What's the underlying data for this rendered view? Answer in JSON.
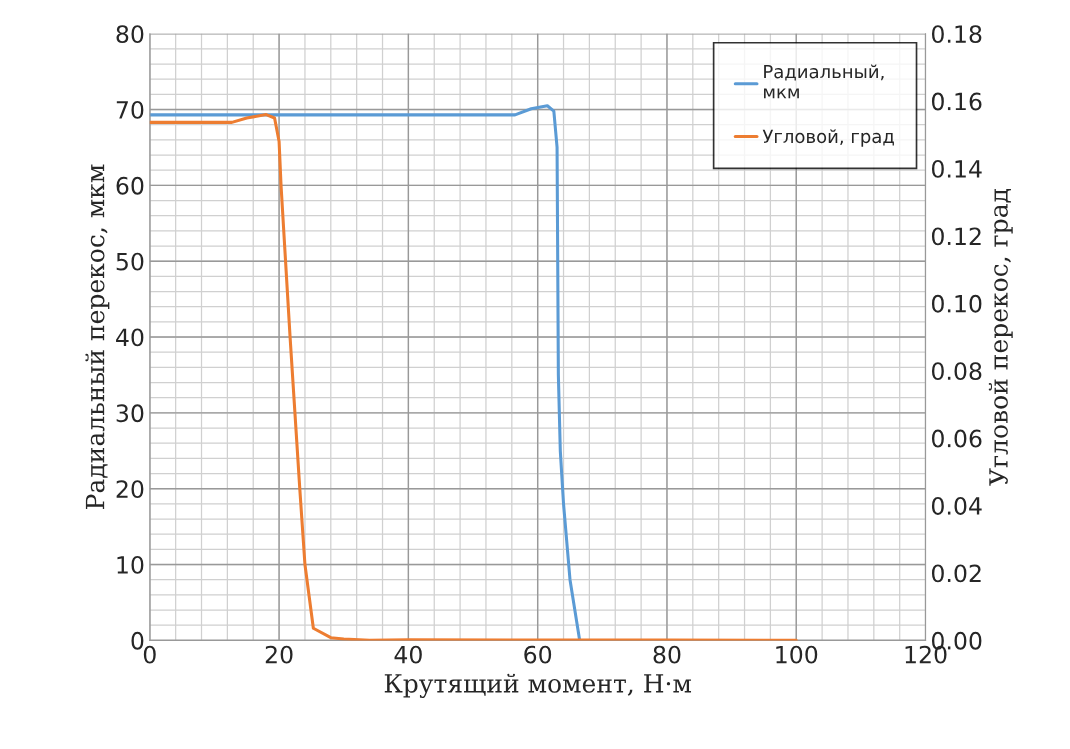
{
  "chart_data": {
    "type": "line",
    "xlabel": "Крутящий момент, Н·м",
    "ylabel": "Радиальный перекос, мкм",
    "y2label": "Угловой перекос, град",
    "xlim": [
      0,
      120
    ],
    "xticks": [
      0,
      20,
      40,
      60,
      80,
      100,
      120
    ],
    "ylim": [
      0,
      80
    ],
    "yticks": [
      0,
      10,
      20,
      30,
      40,
      50,
      60,
      70,
      80
    ],
    "y2lim": [
      0,
      0.18
    ],
    "y2ticks": [
      {
        "value": 0,
        "label": "0.00"
      },
      {
        "value": 0.02,
        "label": "0.02"
      },
      {
        "value": 0.04,
        "label": "0.04"
      },
      {
        "value": 0.06,
        "label": "0.06"
      },
      {
        "value": 0.08,
        "label": "0.08"
      },
      {
        "value": 0.1,
        "label": "0.10"
      },
      {
        "value": 0.12,
        "label": "0.12"
      },
      {
        "value": 0.14,
        "label": "0.14"
      },
      {
        "value": 0.16,
        "label": "0.16"
      },
      {
        "value": 0.18,
        "label": "0.18"
      }
    ],
    "grid": true,
    "legend": "top right",
    "marker": "none",
    "line_style": "solid",
    "series": [
      {
        "name": "Радиальный,\nмкм",
        "color": "#5b9bd5",
        "x": [
          0,
          56.5,
          59,
          61.5,
          62.5,
          63,
          63.1,
          63.2,
          63.5,
          64,
          65,
          66.5
        ],
        "values": [
          69.3,
          69.3,
          70.1,
          70.5,
          69.8,
          65,
          50,
          35,
          25,
          18,
          8,
          0
        ]
      },
      {
        "name": "Угловой, град",
        "color": "#ed7d31",
        "axis": "y2",
        "x": [
          0,
          12.7,
          15,
          18,
          19.3,
          20,
          20.3,
          21.7,
          23.2,
          24,
          25.3,
          28,
          30,
          34,
          40,
          60,
          80,
          100
        ],
        "values": [
          0.1537,
          0.1537,
          0.155,
          0.156,
          0.155,
          0.148,
          0.135,
          0.09,
          0.045,
          0.0225,
          0.0036,
          0.0008,
          0.0004,
          0,
          0.0002,
          0.0001,
          0.0001,
          0
        ]
      }
    ]
  }
}
